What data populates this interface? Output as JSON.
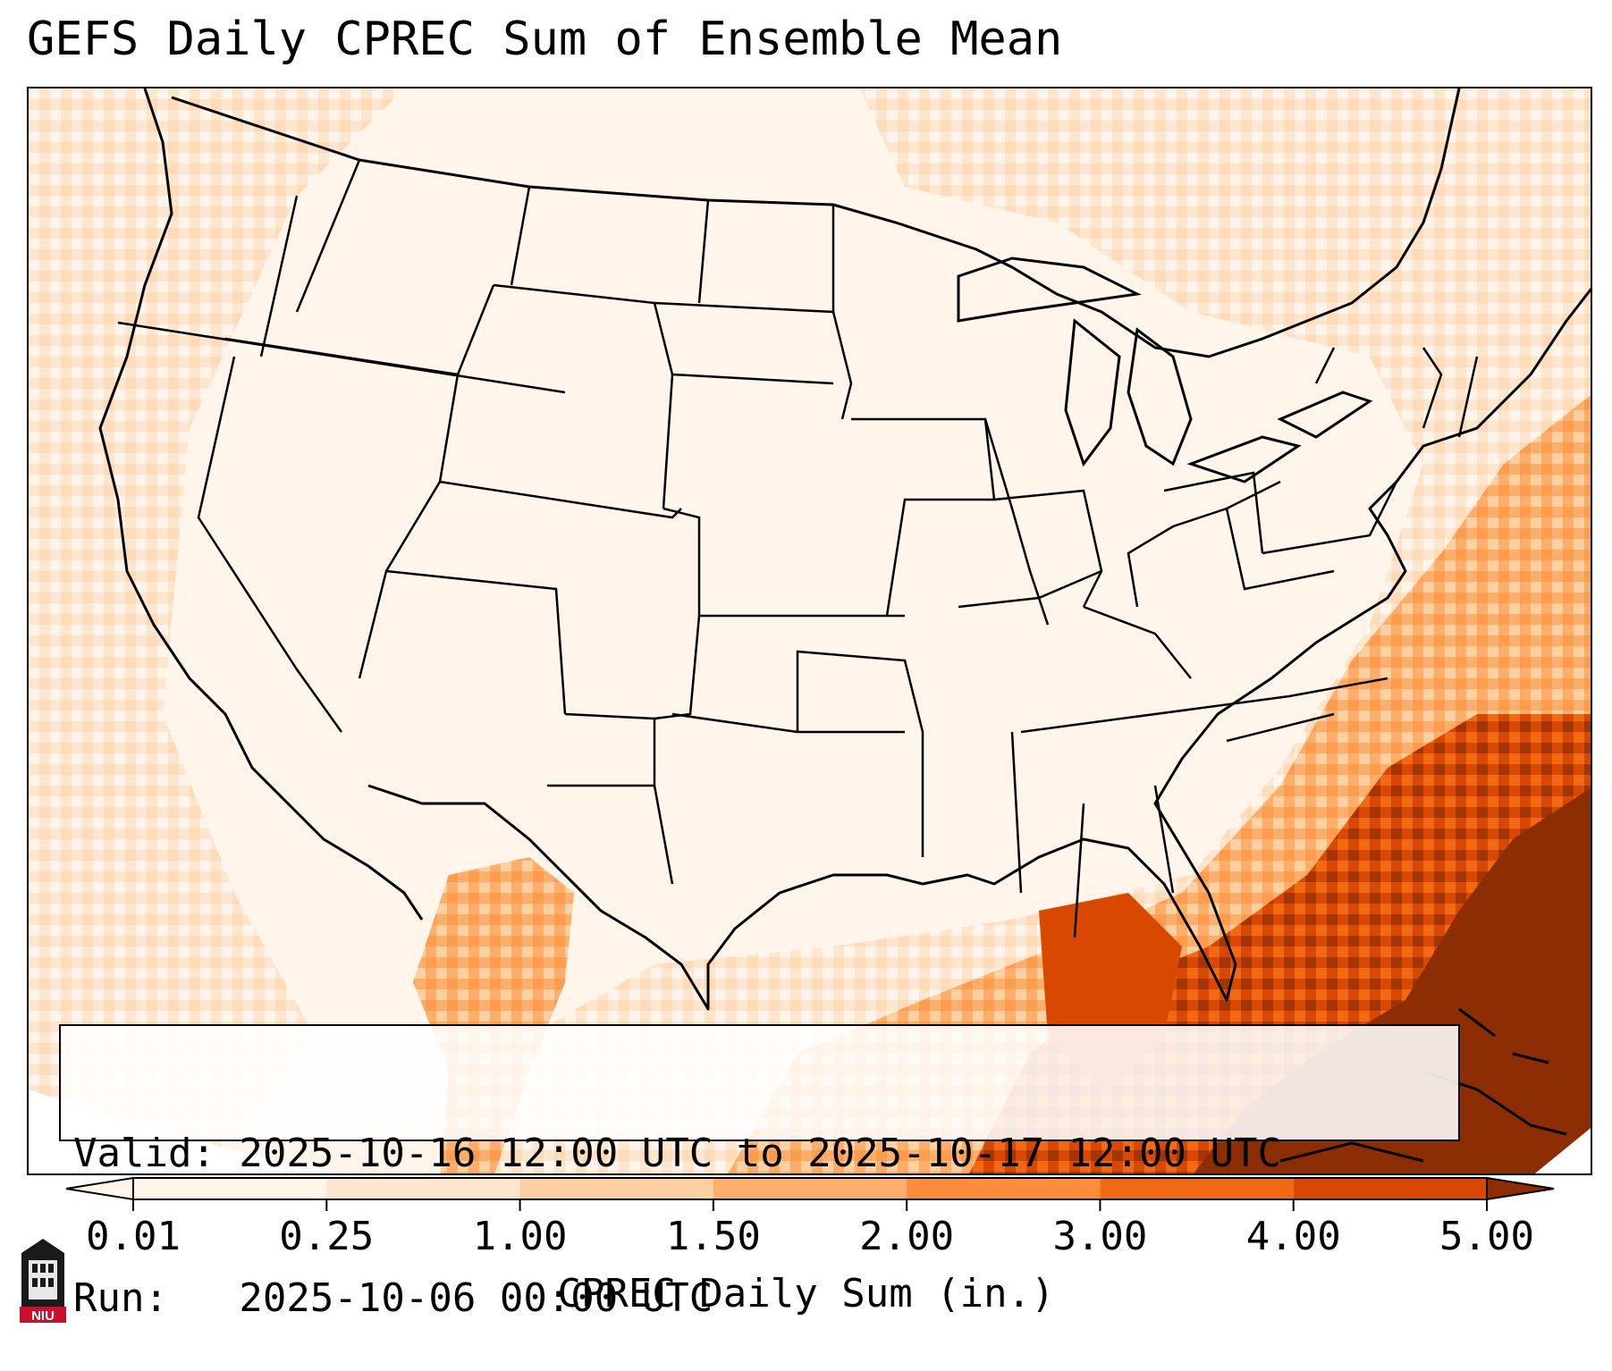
{
  "title": "GEFS Daily CPREC Sum of Ensemble Mean",
  "valid_line": "Valid: 2025-10-16 12:00 UTC to 2025-10-17 12:00 UTC",
  "run_line": "Run:   2025-10-06 00:00 UTC",
  "colorbar": {
    "label": "CPREC Daily Sum (in.)",
    "ticks": [
      "0.01",
      "0.25",
      "1.00",
      "1.50",
      "2.00",
      "3.00",
      "4.00",
      "5.00"
    ],
    "colors": [
      "#fff5eb",
      "#fee6ce",
      "#fdd0a2",
      "#fdae6b",
      "#fd8d3c",
      "#f16913",
      "#d94801",
      "#8c2d04"
    ],
    "extend": "both"
  },
  "logo": {
    "text": "NIU",
    "icon": "university-tower-icon"
  },
  "map": {
    "region": "Contiguous United States",
    "field": "CPREC daily sum",
    "heaviest_precip": "Gulf of Mexico, Florida and western Atlantic",
    "borders_color": "#000000"
  }
}
